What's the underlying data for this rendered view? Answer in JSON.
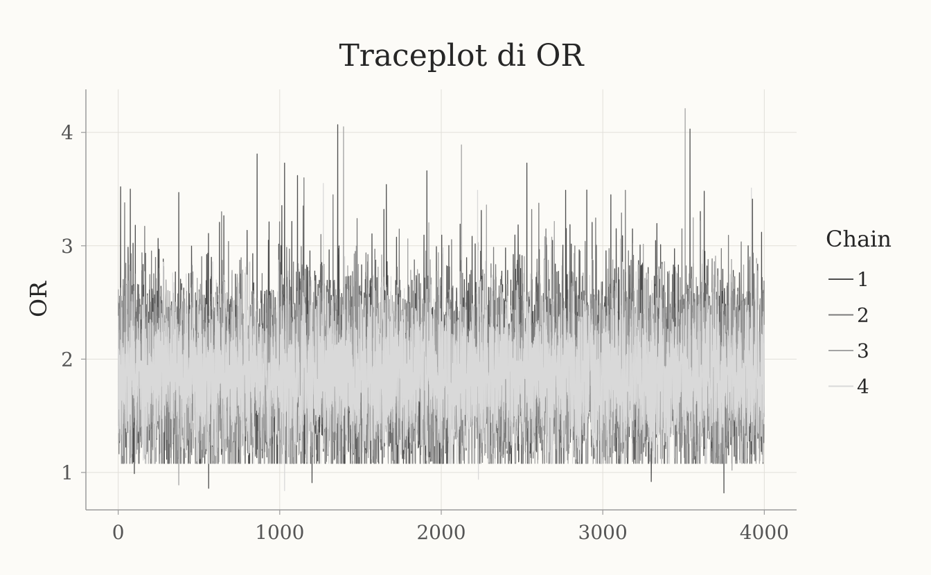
{
  "chart_data": {
    "type": "line",
    "title": "Traceplot di OR",
    "xlabel": "",
    "ylabel": "OR",
    "xlim": [
      -200,
      4200
    ],
    "ylim": [
      0.67,
      4.38
    ],
    "xticks": [
      0,
      1000,
      2000,
      3000,
      4000
    ],
    "xtick_labels": [
      "0",
      "1000",
      "2000",
      "3000",
      "4000"
    ],
    "yticks": [
      1,
      2,
      3,
      4
    ],
    "ytick_labels": [
      "1",
      "2",
      "3",
      "4"
    ],
    "grid": true,
    "legend": {
      "title": "Chain",
      "placement": "right"
    },
    "iterations": 4000,
    "series": [
      {
        "name": "1",
        "color": "#4d4d4d",
        "center": 1.9,
        "spread": 0.47,
        "seed": 11,
        "spikes": [
          [
            15,
            3.52
          ],
          [
            75,
            3.5
          ],
          [
            100,
            0.99
          ],
          [
            375,
            3.47
          ],
          [
            560,
            0.86
          ],
          [
            860,
            3.81
          ],
          [
            1030,
            3.73
          ],
          [
            1110,
            3.62
          ],
          [
            1200,
            0.91
          ],
          [
            1660,
            3.54
          ],
          [
            2530,
            3.73
          ],
          [
            2770,
            3.49
          ],
          [
            3050,
            3.45
          ],
          [
            3300,
            0.92
          ],
          [
            3540,
            4.03
          ],
          [
            3750,
            0.82
          ],
          [
            3900,
            3.0
          ]
        ]
      },
      {
        "name": "2",
        "color": "#7a7a7a",
        "center": 1.88,
        "spread": 0.42,
        "seed": 23,
        "spikes": [
          [
            40,
            3.38
          ],
          [
            640,
            3.3
          ],
          [
            1150,
            3.6
          ],
          [
            1330,
            3.45
          ],
          [
            2560,
            3.32
          ],
          [
            3140,
            3.49
          ],
          [
            3490,
            3.15
          ]
        ]
      },
      {
        "name": "3",
        "color": "#a3a3a3",
        "center": 1.86,
        "spread": 0.4,
        "seed": 37,
        "spikes": [
          [
            375,
            0.89
          ],
          [
            1395,
            4.05
          ],
          [
            2125,
            3.89
          ],
          [
            2280,
            3.36
          ],
          [
            3510,
            4.21
          ],
          [
            3800,
            1.02
          ]
        ]
      },
      {
        "name": "4",
        "color": "#d9d9d9",
        "center": 1.87,
        "spread": 0.36,
        "seed": 53,
        "spikes": [
          [
            1030,
            0.84
          ],
          [
            1270,
            3.55
          ],
          [
            2230,
            0.94
          ],
          [
            2225,
            3.49
          ],
          [
            3920,
            3.51
          ],
          [
            3600,
            3.22
          ]
        ]
      }
    ]
  }
}
